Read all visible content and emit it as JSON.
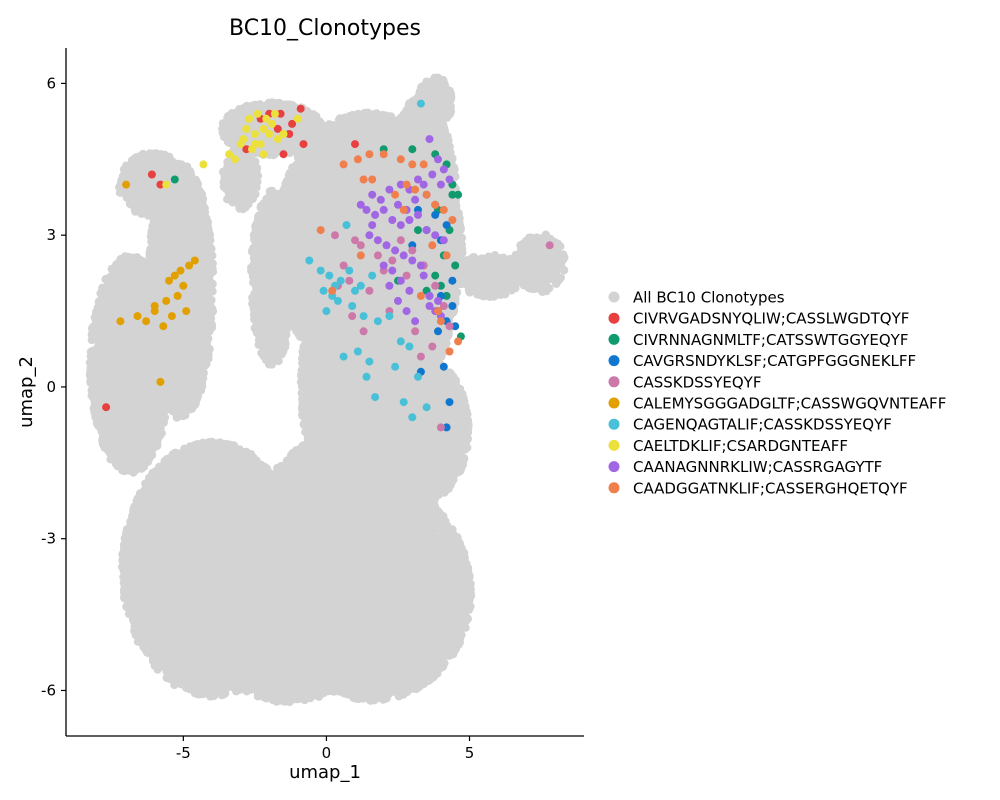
{
  "chart_data": {
    "type": "scatter",
    "title": "BC10_Clonotypes",
    "xlabel": "umap_1",
    "ylabel": "umap_2",
    "xlim": [
      -9.1,
      9.0
    ],
    "ylim": [
      -6.9,
      6.7
    ],
    "xticks": [
      -5,
      0,
      5
    ],
    "yticks": [
      -6,
      -3,
      0,
      3,
      6
    ],
    "xtick_labels": [
      "-5",
      "0",
      "5"
    ],
    "ytick_labels": [
      "-6",
      "-3",
      "0",
      "3",
      "6"
    ],
    "grid": false,
    "legend_position": "right",
    "background_series": {
      "name": "All BC10 Clonotypes",
      "color": "#d3d3d3",
      "regions": [
        {
          "x": [
            -8.2,
            -5.5
          ],
          "y": [
            -1.6,
            2.5
          ]
        },
        {
          "x": [
            -6.2,
            -4.0
          ],
          "y": [
            -0.5,
            4.3
          ]
        },
        {
          "x": [
            -7.2,
            -4.9
          ],
          "y": [
            3.4,
            4.6
          ]
        },
        {
          "x": [
            -7.0,
            -1.0
          ],
          "y": [
            -6.0,
            -1.2
          ]
        },
        {
          "x": [
            -5.0,
            -1.5
          ],
          "y": [
            -5.9,
            -3.8
          ]
        },
        {
          "x": [
            -3.5,
            0.8
          ],
          "y": [
            -6.2,
            -4.4
          ]
        },
        {
          "x": [
            -1.7,
            4.9
          ],
          "y": [
            -6.1,
            -2.0
          ]
        },
        {
          "x": [
            -0.8,
            3.0
          ],
          "y": [
            -2.5,
            2.6
          ]
        },
        {
          "x": [
            -2.2,
            3.7
          ],
          "y": [
            -4.2,
            -1.0
          ]
        },
        {
          "x": [
            1.8,
            4.9
          ],
          "y": [
            -2.2,
            0.5
          ]
        },
        {
          "x": [
            2.0,
            4.6
          ],
          "y": [
            0.3,
            5.6
          ]
        },
        {
          "x": [
            -1.7,
            4.6
          ],
          "y": [
            0.2,
            5.3
          ]
        },
        {
          "x": [
            -2.6,
            -1.2
          ],
          "y": [
            0.5,
            3.8
          ]
        },
        {
          "x": [
            -3.6,
            -2.4
          ],
          "y": [
            3.5,
            4.7
          ]
        },
        {
          "x": [
            -3.6,
            -0.2
          ],
          "y": [
            4.6,
            5.6
          ]
        },
        {
          "x": [
            3.2,
            4.4
          ],
          "y": [
            5.2,
            6.1
          ]
        },
        {
          "x": [
            6.6,
            8.3
          ],
          "y": [
            1.9,
            3.0
          ]
        },
        {
          "x": [
            4.6,
            6.8
          ],
          "y": [
            1.8,
            2.6
          ]
        }
      ]
    },
    "series": [
      {
        "name": "CIVRVGADSNYQLIW;CASSLWGDTQYF",
        "color": "#e84040",
        "x": [
          -7.7,
          -6.1,
          -5.8,
          -2.3,
          -1.6,
          -1.2,
          -0.9,
          -1.5,
          -2.0,
          -0.8,
          -1.3,
          -1.7,
          -2.8,
          1.0
        ],
        "y": [
          -0.4,
          4.2,
          4.0,
          5.3,
          5.4,
          5.2,
          5.5,
          4.6,
          5.4,
          4.8,
          5.0,
          5.1,
          4.7,
          4.8
        ]
      },
      {
        "name": "CIVRNNAGNMLTF;CATSSWTGGYEQYF",
        "color": "#109a6e",
        "x": [
          -5.3,
          2.0,
          3.0,
          3.8,
          4.2,
          4.4,
          4.6,
          3.9,
          4.3,
          3.2,
          4.1,
          4.5,
          4.7,
          3.8,
          4.0,
          2.5,
          3.5,
          4.2,
          4.4
        ],
        "y": [
          4.1,
          4.7,
          4.7,
          4.6,
          4.4,
          4.0,
          3.8,
          3.5,
          3.1,
          3.1,
          2.6,
          2.4,
          1.0,
          2.2,
          2.0,
          2.1,
          1.9,
          1.8,
          3.8
        ]
      },
      {
        "name": "CAVGRSNDYKLSF;CATGPFGGGNEKLFF",
        "color": "#1077d0",
        "x": [
          3.2,
          3.5,
          3.8,
          4.2,
          3.0,
          4.0,
          4.4,
          3.6,
          3.9,
          4.2,
          4.5,
          4.1,
          4.3,
          3.3,
          4.0,
          4.4,
          4.2,
          3.9
        ],
        "y": [
          3.5,
          3.1,
          3.4,
          3.2,
          2.8,
          2.9,
          2.1,
          1.8,
          1.5,
          1.3,
          1.2,
          0.4,
          -0.3,
          0.3,
          1.8,
          1.6,
          -0.8,
          1.1
        ]
      },
      {
        "name": "CASSKDSSYEQYF",
        "color": "#cc78a8",
        "x": [
          0.3,
          1.0,
          1.2,
          1.8,
          2.3,
          2.6,
          0.6,
          0.8,
          1.5,
          2.0,
          3.0,
          3.4,
          3.8,
          4.1,
          4.3,
          7.8,
          0.9,
          1.3,
          2.2,
          3.1,
          3.7,
          0.4,
          2.8,
          3.3,
          4.0
        ],
        "y": [
          3.0,
          2.9,
          2.8,
          2.6,
          2.5,
          2.9,
          2.4,
          2.1,
          1.9,
          2.3,
          2.7,
          2.4,
          2.0,
          1.6,
          1.2,
          2.8,
          1.4,
          1.1,
          1.5,
          1.1,
          0.8,
          2.0,
          2.2,
          0.6,
          -0.8
        ]
      },
      {
        "name": "CALEMYSGGGADGLTF;CASSWGQVNTEAFF",
        "color": "#e2a000",
        "x": [
          -7.0,
          -5.3,
          -5.5,
          -5.0,
          -4.8,
          -5.6,
          -5.2,
          -4.9,
          -5.4,
          -6.0,
          -6.3,
          -6.6,
          -7.2,
          -5.7,
          -4.6,
          -5.1,
          -5.8,
          -6.0
        ],
        "y": [
          4.0,
          2.2,
          2.1,
          2.0,
          2.4,
          1.7,
          1.8,
          1.5,
          1.4,
          1.5,
          1.3,
          1.4,
          1.3,
          1.2,
          2.5,
          2.3,
          0.1,
          1.6
        ]
      },
      {
        "name": "CAGENQAGTALIF;CASSKDSSYEQYF",
        "color": "#48c0d8",
        "x": [
          3.3,
          0.7,
          -0.6,
          -0.2,
          0.1,
          0.3,
          0.5,
          0.8,
          1.0,
          1.2,
          1.6,
          0.0,
          0.4,
          0.9,
          1.3,
          1.8,
          2.2,
          2.6,
          2.9,
          0.6,
          1.1,
          1.5,
          2.4,
          3.2,
          1.4,
          1.7,
          2.7,
          3.0,
          3.5,
          -0.1,
          0.2
        ],
        "y": [
          5.6,
          3.2,
          2.5,
          2.3,
          2.2,
          2.0,
          2.1,
          2.3,
          1.9,
          2.0,
          2.2,
          1.5,
          1.7,
          1.6,
          1.4,
          1.3,
          1.4,
          0.9,
          0.8,
          0.6,
          0.7,
          0.5,
          0.4,
          0.2,
          0.2,
          -0.2,
          -0.3,
          -0.6,
          -0.4,
          1.9,
          1.8
        ]
      },
      {
        "name": "CAELTDKLIF;CSARDGNTEAFF",
        "color": "#ece03c",
        "x": [
          -4.3,
          -5.6,
          -2.9,
          -2.5,
          -2.2,
          -1.9,
          -2.7,
          -2.4,
          -2.0,
          -1.7,
          -3.0,
          -2.6,
          -2.3,
          -2.1,
          -1.8,
          -2.8,
          -3.4,
          -3.2,
          -1.0,
          -2.5,
          -2.2,
          -1.5
        ],
        "y": [
          4.4,
          4.0,
          4.9,
          5.0,
          5.1,
          5.2,
          5.3,
          5.4,
          5.0,
          4.9,
          4.8,
          4.7,
          4.8,
          5.3,
          5.4,
          5.1,
          4.6,
          4.5,
          5.3,
          4.8,
          4.6,
          5.0
        ]
      },
      {
        "name": "CAANAGNNRKLIW;CASSRGAGYTF",
        "color": "#a066e4",
        "x": [
          3.6,
          3.9,
          4.1,
          4.3,
          3.4,
          3.7,
          4.0,
          2.6,
          2.9,
          3.2,
          3.5,
          3.8,
          1.6,
          1.9,
          2.2,
          2.5,
          2.8,
          3.1,
          1.4,
          1.7,
          2.0,
          2.3,
          2.6,
          2.9,
          3.2,
          3.5,
          3.8,
          4.1,
          1.5,
          1.8,
          2.1,
          2.4,
          2.7,
          3.0,
          3.3,
          2.0,
          2.3,
          2.6,
          2.9,
          3.6,
          3.9,
          1.2,
          3.6,
          3.8,
          4.0,
          3.4,
          2.5,
          2.8,
          3.1,
          1.6,
          2.2
        ],
        "y": [
          4.9,
          4.5,
          4.3,
          4.1,
          4.0,
          4.2,
          4.0,
          4.0,
          3.9,
          4.1,
          3.8,
          3.6,
          3.8,
          3.7,
          3.9,
          3.6,
          3.5,
          3.7,
          3.5,
          3.4,
          3.5,
          3.3,
          3.2,
          3.3,
          3.4,
          3.1,
          3.0,
          2.9,
          3.0,
          2.9,
          2.8,
          2.7,
          2.6,
          2.5,
          2.4,
          2.4,
          2.3,
          2.1,
          1.9,
          1.8,
          1.7,
          3.6,
          1.6,
          1.5,
          1.4,
          2.2,
          1.7,
          1.5,
          1.3,
          3.2,
          2.0
        ]
      },
      {
        "name": "CAADGGATNKLIF;CASSERGHQETQYF",
        "color": "#f07f4e",
        "x": [
          0.6,
          1.1,
          1.5,
          2.0,
          2.6,
          3.0,
          3.4,
          1.3,
          1.6,
          2.8,
          3.1,
          3.5,
          3.8,
          4.1,
          4.4,
          -0.2,
          1.2,
          2.4,
          3.7,
          4.2,
          3.9,
          4.3,
          0.2,
          2.7,
          3.3,
          4.0,
          4.6
        ],
        "y": [
          4.4,
          4.5,
          4.6,
          4.6,
          4.5,
          4.4,
          4.4,
          4.1,
          4.1,
          4.0,
          3.9,
          3.8,
          3.6,
          3.5,
          3.3,
          3.1,
          2.6,
          3.8,
          2.8,
          2.6,
          1.5,
          0.7,
          1.9,
          3.5,
          1.8,
          1.3,
          0.9
        ]
      }
    ]
  }
}
